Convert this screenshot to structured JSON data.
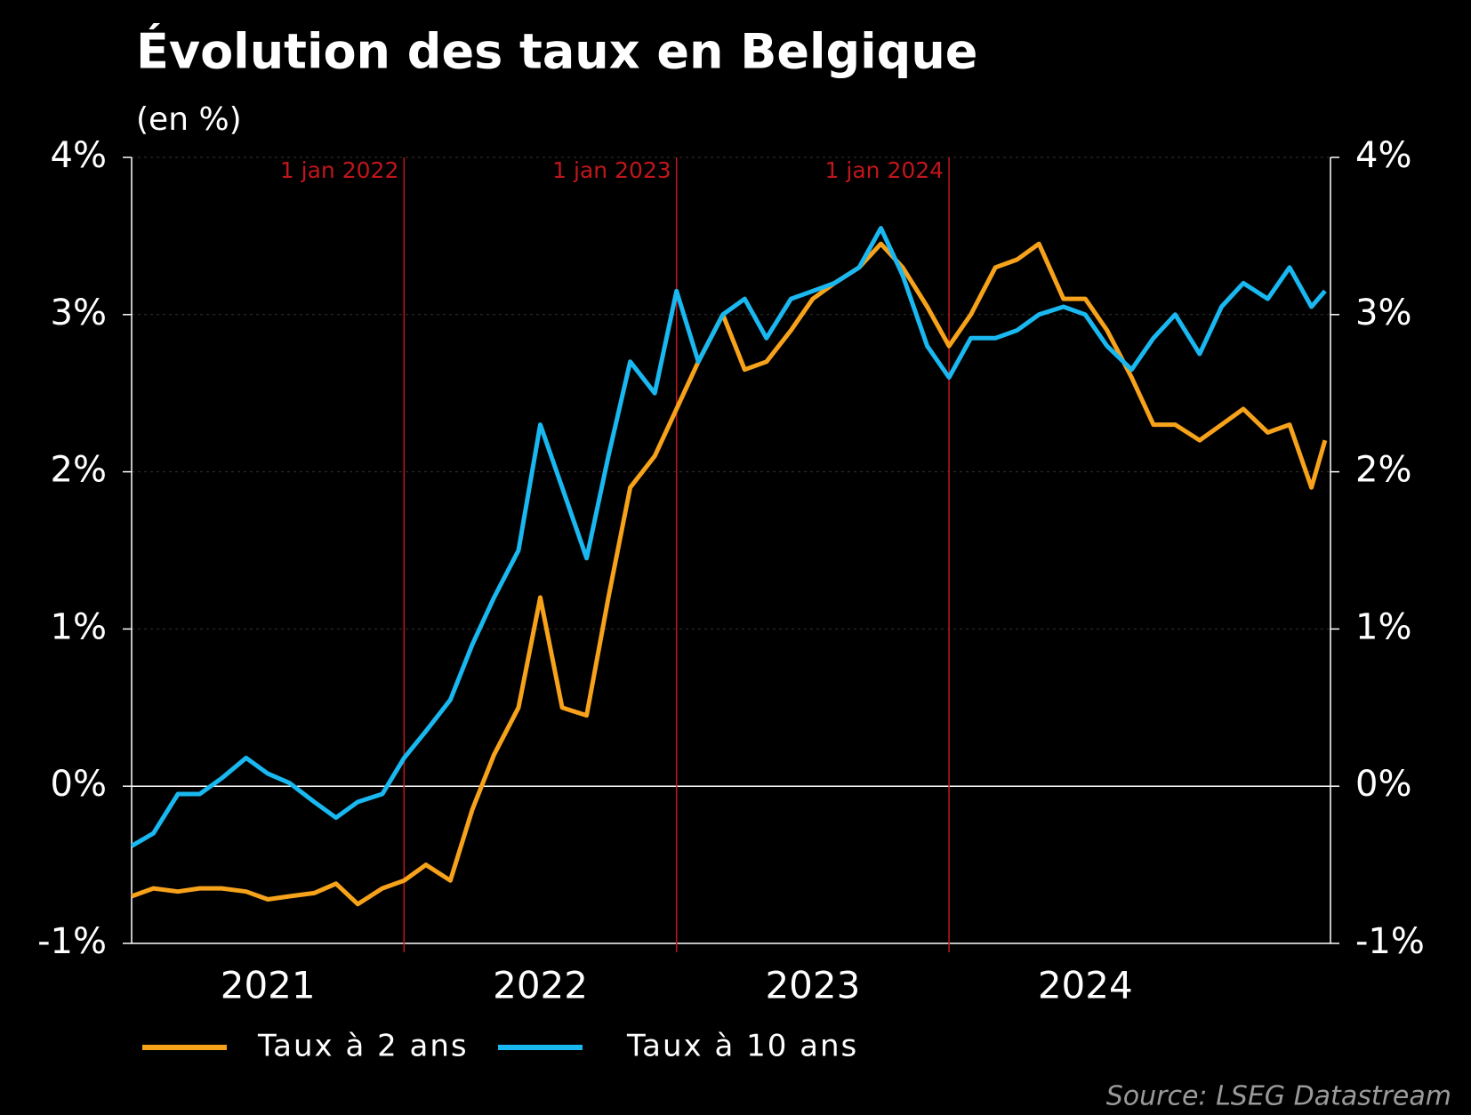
{
  "chart_data": {
    "type": "line",
    "title": "Évolution des taux en Belgique",
    "subtitle": "(en %)",
    "source": "Source: LSEG Datastream",
    "x": [
      2021.0,
      2021.08,
      2021.17,
      2021.25,
      2021.33,
      2021.42,
      2021.5,
      2021.58,
      2021.67,
      2021.75,
      2021.83,
      2021.92,
      2022.0,
      2022.08,
      2022.17,
      2022.25,
      2022.33,
      2022.42,
      2022.5,
      2022.58,
      2022.67,
      2022.75,
      2022.83,
      2022.92,
      2023.0,
      2023.08,
      2023.17,
      2023.25,
      2023.33,
      2023.42,
      2023.5,
      2023.58,
      2023.67,
      2023.75,
      2023.83,
      2023.92,
      2024.0,
      2024.08,
      2024.17,
      2024.25,
      2024.33,
      2024.42,
      2024.5,
      2024.58,
      2024.67,
      2024.75,
      2024.83,
      2024.92,
      2025.0,
      2025.08,
      2025.17,
      2025.25,
      2025.33,
      2025.38
    ],
    "series": [
      {
        "name": "Taux à 2 ans",
        "color": "#f7a21b",
        "values": [
          -0.7,
          -0.65,
          -0.67,
          -0.65,
          -0.65,
          -0.67,
          -0.72,
          -0.7,
          -0.68,
          -0.62,
          -0.75,
          -0.65,
          -0.6,
          -0.5,
          -0.6,
          -0.15,
          0.2,
          0.5,
          1.2,
          0.5,
          0.45,
          1.2,
          1.9,
          2.1,
          2.4,
          2.7,
          3.0,
          2.65,
          2.7,
          2.9,
          3.1,
          3.2,
          3.3,
          3.45,
          3.3,
          3.05,
          2.8,
          3.0,
          3.3,
          3.35,
          3.45,
          3.1,
          3.1,
          2.9,
          2.6,
          2.3,
          2.3,
          2.2,
          2.3,
          2.4,
          2.25,
          2.3,
          1.9,
          2.2
        ]
      },
      {
        "name": "Taux à 10 ans",
        "color": "#1ab8f0",
        "values": [
          -0.38,
          -0.3,
          -0.05,
          -0.05,
          0.05,
          0.18,
          0.08,
          0.02,
          -0.1,
          -0.2,
          -0.1,
          -0.05,
          0.18,
          0.35,
          0.55,
          0.9,
          1.2,
          1.5,
          2.3,
          1.9,
          1.45,
          2.1,
          2.7,
          2.5,
          3.15,
          2.7,
          3.0,
          3.1,
          2.85,
          3.1,
          3.15,
          3.2,
          3.3,
          3.55,
          3.25,
          2.8,
          2.6,
          2.85,
          2.85,
          2.9,
          3.0,
          3.05,
          3.0,
          2.8,
          2.65,
          2.85,
          3.0,
          2.75,
          3.05,
          3.2,
          3.1,
          3.3,
          3.05,
          3.15
        ]
      }
    ],
    "xlim": [
      2021.0,
      2025.4
    ],
    "xticks": [
      {
        "value": 2021.5,
        "label": "2021"
      },
      {
        "value": 2022.5,
        "label": "2022"
      },
      {
        "value": 2023.5,
        "label": "2023"
      },
      {
        "value": 2024.5,
        "label": "2024"
      }
    ],
    "ylim": [
      -1,
      4
    ],
    "yticks": [
      {
        "value": -1,
        "label": "-1%"
      },
      {
        "value": 0,
        "label": "0%"
      },
      {
        "value": 1,
        "label": "1%"
      },
      {
        "value": 2,
        "label": "2%"
      },
      {
        "value": 3,
        "label": "3%"
      },
      {
        "value": 4,
        "label": "4%"
      }
    ],
    "y2lim": [
      -1,
      4
    ],
    "y2ticks": [
      {
        "value": -1,
        "label": "-1%"
      },
      {
        "value": 0,
        "label": "0%"
      },
      {
        "value": 1,
        "label": "1%"
      },
      {
        "value": 2,
        "label": "2%"
      },
      {
        "value": 3,
        "label": "3%"
      },
      {
        "value": 4,
        "label": "4%"
      }
    ],
    "annotations": [
      {
        "x": 2022.0,
        "label": "1 jan 2022"
      },
      {
        "x": 2023.0,
        "label": "1 jan 2023"
      },
      {
        "x": 2024.0,
        "label": "1 jan 2024"
      }
    ],
    "annotation_color": "#c0161c",
    "grid": true
  }
}
